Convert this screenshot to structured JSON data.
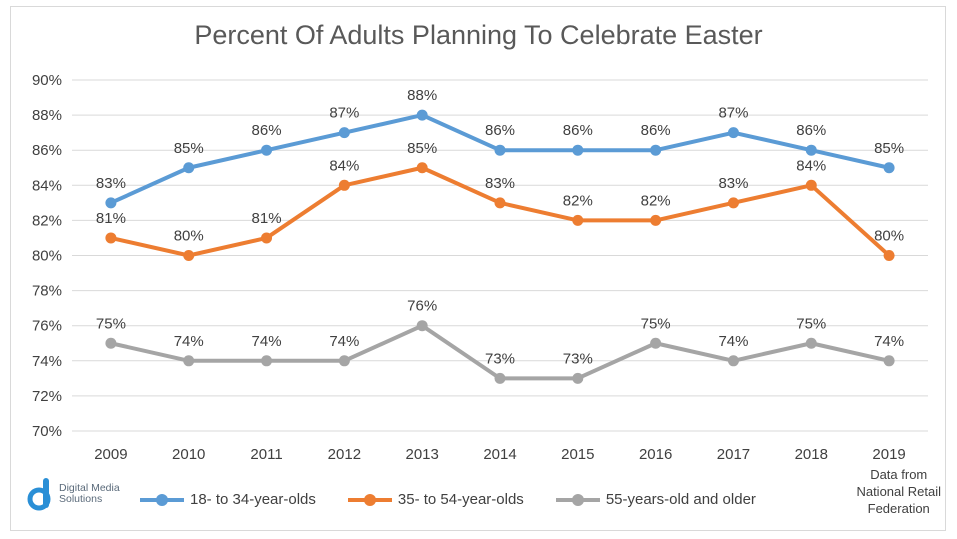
{
  "chart_data": {
    "type": "line",
    "title": "Percent Of Adults Planning To Celebrate Easter",
    "categories": [
      "2009",
      "2010",
      "2011",
      "2012",
      "2013",
      "2014",
      "2015",
      "2016",
      "2017",
      "2018",
      "2019"
    ],
    "ylim": [
      70,
      90
    ],
    "ytick_step": 2,
    "y_unit": "%",
    "grid": true,
    "legend_position": "bottom",
    "series": [
      {
        "name": "18- to 34-year-olds",
        "color": "#5b9bd5",
        "values": [
          83,
          85,
          86,
          87,
          88,
          86,
          86,
          86,
          87,
          86,
          85
        ]
      },
      {
        "name": "35- to 54-year-olds",
        "color": "#ed7d31",
        "values": [
          81,
          80,
          81,
          84,
          85,
          83,
          82,
          82,
          83,
          84,
          80
        ]
      },
      {
        "name": "55-years-old and older",
        "color": "#a5a5a5",
        "values": [
          75,
          74,
          74,
          74,
          76,
          73,
          73,
          75,
          74,
          75,
          74
        ]
      }
    ]
  },
  "branding": {
    "logo_line1": "Digital Media",
    "logo_line2": "Solutions",
    "logo_color": "#2a8fd6"
  },
  "source": {
    "line1": "Data from",
    "line2": "National Retail",
    "line3": "Federation"
  }
}
